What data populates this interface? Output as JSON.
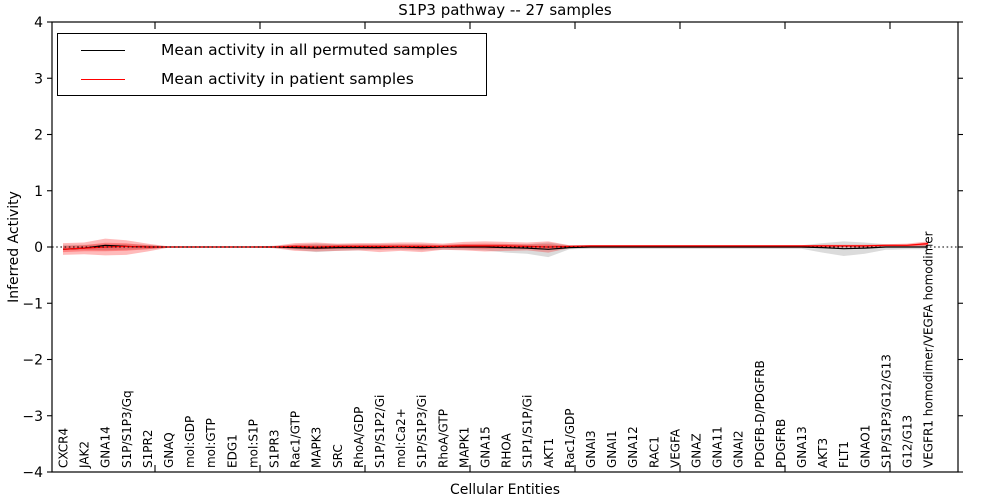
{
  "chart_data": {
    "type": "line",
    "title": "S1P3 pathway -- 27 samples",
    "xlabel": "Cellular Entities",
    "ylabel": "Inferred Activity",
    "ylim": [
      -4,
      4
    ],
    "yticks": [
      -4,
      -3,
      -2,
      -1,
      0,
      1,
      2,
      3,
      4
    ],
    "grid": false,
    "legend": {
      "position": "upper left",
      "entries": [
        {
          "label": "Mean activity in all permuted samples",
          "color": "#000000"
        },
        {
          "label": "Mean activity in patient samples",
          "color": "#ff0000"
        }
      ]
    },
    "categories": [
      "CXCR4",
      "JAK2",
      "GNA14",
      "S1P/S1P3/Gq",
      "S1PR2",
      "GNAQ",
      "mol:GDP",
      "mol:GTP",
      "EDG1",
      "mol:S1P",
      "S1PR3",
      "Rac1/GTP",
      "MAPK3",
      "SRC",
      "RhoA/GDP",
      "S1P/S1P2/Gi",
      "mol:Ca2+",
      "S1P/S1P3/Gi",
      "RhoA/GTP",
      "MAPK1",
      "GNA15",
      "RHOA",
      "S1P1/S1P/Gi",
      "AKT1",
      "Rac1/GDP",
      "GNAI3",
      "GNAI1",
      "GNA12",
      "RAC1",
      "VEGFA",
      "GNAZ",
      "GNA11",
      "GNAI2",
      "PDGFB-D/PDGFRB",
      "PDGFRB",
      "GNA13",
      "AKT3",
      "FLT1",
      "GNAO1",
      "S1P/S1P3/G12/G13",
      "G12/G13",
      "VEGFR1 homodimer/VEGFA homodimer"
    ],
    "series": [
      {
        "name": "Mean activity in all permuted samples",
        "color": "#000000",
        "values": [
          -0.04,
          -0.02,
          0.03,
          0.01,
          0.0,
          0.0,
          0.0,
          0.0,
          0.0,
          0.0,
          0.0,
          -0.01,
          -0.02,
          -0.01,
          -0.01,
          -0.01,
          0.0,
          -0.01,
          0.0,
          0.0,
          0.0,
          -0.01,
          -0.02,
          -0.04,
          -0.01,
          0.0,
          0.0,
          0.0,
          0.0,
          0.0,
          0.0,
          0.0,
          0.0,
          0.0,
          0.0,
          0.0,
          -0.01,
          -0.03,
          -0.02,
          0.0,
          0.0,
          0.0
        ]
      },
      {
        "name": "Mean activity in patient samples",
        "color": "#ff0000",
        "values": [
          -0.04,
          -0.02,
          0.0,
          0.01,
          0.0,
          0.0,
          0.0,
          0.0,
          0.0,
          0.0,
          0.0,
          0.01,
          0.0,
          0.01,
          0.01,
          0.01,
          0.01,
          0.01,
          0.01,
          0.02,
          0.02,
          0.02,
          0.01,
          0.0,
          0.01,
          0.02,
          0.02,
          0.02,
          0.02,
          0.02,
          0.02,
          0.02,
          0.02,
          0.02,
          0.02,
          0.02,
          0.02,
          0.02,
          0.02,
          0.03,
          0.03,
          0.06
        ]
      }
    ],
    "bands": [
      {
        "name": "permuted-range",
        "color": "#909090",
        "alpha": 0.32,
        "lo": [
          -0.05,
          -0.05,
          -0.06,
          -0.05,
          -0.04,
          -0.01,
          -0.01,
          -0.01,
          -0.01,
          -0.01,
          -0.02,
          -0.05,
          -0.09,
          -0.07,
          -0.06,
          -0.05,
          -0.05,
          -0.06,
          -0.05,
          -0.05,
          -0.06,
          -0.1,
          -0.12,
          -0.18,
          -0.04,
          -0.03,
          -0.03,
          -0.03,
          -0.03,
          -0.03,
          -0.03,
          -0.03,
          -0.03,
          -0.03,
          -0.03,
          -0.03,
          -0.1,
          -0.16,
          -0.12,
          -0.05,
          -0.04,
          -0.04
        ],
        "hi": [
          0.04,
          0.04,
          0.05,
          0.05,
          0.04,
          0.01,
          0.01,
          0.01,
          0.01,
          0.01,
          0.02,
          0.04,
          0.06,
          0.05,
          0.05,
          0.05,
          0.05,
          0.05,
          0.04,
          0.05,
          0.05,
          0.05,
          0.05,
          0.08,
          0.03,
          0.03,
          0.03,
          0.03,
          0.03,
          0.03,
          0.03,
          0.03,
          0.03,
          0.03,
          0.03,
          0.03,
          0.07,
          0.1,
          0.08,
          0.05,
          0.04,
          0.04
        ]
      },
      {
        "name": "patient-range",
        "color": "#ff0000",
        "alpha": 0.27,
        "lo": [
          -0.14,
          -0.13,
          -0.15,
          -0.14,
          -0.08,
          -0.01,
          -0.01,
          -0.01,
          -0.01,
          -0.01,
          -0.02,
          -0.07,
          -0.08,
          -0.07,
          -0.06,
          -0.09,
          -0.07,
          -0.09,
          -0.05,
          -0.06,
          -0.08,
          -0.07,
          -0.06,
          -0.1,
          -0.02,
          -0.02,
          -0.02,
          -0.02,
          -0.02,
          -0.02,
          -0.02,
          -0.02,
          -0.02,
          -0.02,
          -0.02,
          -0.02,
          -0.01,
          -0.01,
          -0.01,
          0.0,
          0.0,
          0.01
        ],
        "hi": [
          0.07,
          0.08,
          0.15,
          0.12,
          0.06,
          0.01,
          0.01,
          0.01,
          0.01,
          0.01,
          0.02,
          0.07,
          0.08,
          0.06,
          0.07,
          0.07,
          0.08,
          0.08,
          0.06,
          0.09,
          0.1,
          0.09,
          0.08,
          0.1,
          0.03,
          0.03,
          0.03,
          0.03,
          0.03,
          0.03,
          0.03,
          0.03,
          0.03,
          0.03,
          0.03,
          0.03,
          0.04,
          0.04,
          0.04,
          0.05,
          0.06,
          0.1
        ]
      }
    ],
    "zero_line": {
      "style": "dotted",
      "color": "#000000",
      "y": 0
    }
  }
}
